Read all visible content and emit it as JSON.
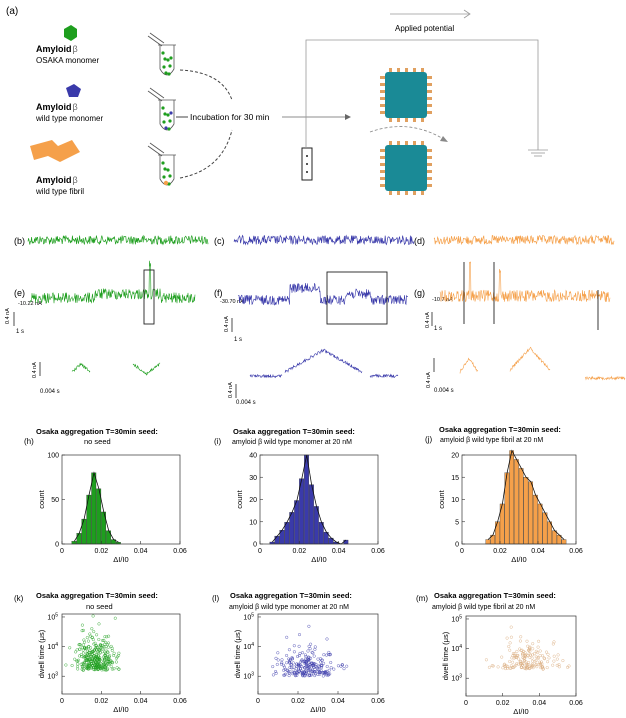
{
  "colors": {
    "green": "#1e9e1e",
    "blue": "#3a3aaa",
    "orange": "#f5a04a",
    "teal": "#1a8a96",
    "gray": "#888888",
    "black": "#111111"
  },
  "schematic": {
    "panel_label": "(a)",
    "species": [
      {
        "name": "Amyloid",
        "beta": "β",
        "sub": "OSAKA monomer"
      },
      {
        "name": "Amyloid",
        "beta": "β",
        "sub": "wild type monomer"
      },
      {
        "name": "Amyloid",
        "beta": "β",
        "sub": "wild type fibril"
      }
    ],
    "incubation_label": "Incubation for 30 min",
    "applied_potential_label": "Applied potential"
  },
  "baselines": [
    {
      "label": "(b)",
      "color": "#1e9e1e"
    },
    {
      "label": "(c)",
      "color": "#3a3aaa"
    },
    {
      "label": "(d)",
      "color": "#f5a04a"
    }
  ],
  "traces": [
    {
      "label": "(e)",
      "color": "#1e9e1e",
      "level": "-10.22 nA",
      "yscale": "0.4 nA",
      "xscale": "1 s",
      "zoom_yscale": "0.4 nA",
      "zoom_xscale": "0.004 s"
    },
    {
      "label": "(f)",
      "color": "#3a3aaa",
      "level": "-30.70 nA",
      "yscale": "0.4 nA",
      "xscale": "1 s",
      "zoom_yscale": "0.4 nA",
      "zoom_xscale": "0.004 s"
    },
    {
      "label": "(g)",
      "color": "#f5a04a",
      "level": "-10.7 nA",
      "yscale": "0.4 nA",
      "xscale": "1 s",
      "zoom_yscale": "0.4 nA",
      "zoom_xscale": "0.004 s"
    }
  ],
  "histograms_meta": [
    {
      "label": "(h)",
      "title": "Osaka aggregation T=30min seed:",
      "subtitle": "no seed"
    },
    {
      "label": "(i)",
      "title": "Osaka aggregation T=30min seed:",
      "subtitle": "amyloid β wild type monomer at 20 nM"
    },
    {
      "label": "(j)",
      "title": "Osaka aggregation T=30min seed:",
      "subtitle": "amyloid β wild type fibril at 20 nM"
    }
  ],
  "scatter_meta": [
    {
      "label": "(k)",
      "title": "Osaka aggregation T=30min seed:",
      "subtitle": "no seed"
    },
    {
      "label": "(l)",
      "title": "Osaka aggregation T=30min seed:",
      "subtitle": "amyloid β wild type monomer at 20 nM"
    },
    {
      "label": "(m)",
      "title": "Osaka aggregation T=30min seed:",
      "subtitle": "amyloid β wild type fibril at 20 nM"
    }
  ],
  "chart_data": [
    {
      "type": "bar",
      "panel": "h",
      "color": "#1e9e1e",
      "xlabel": "ΔI/I0",
      "ylabel": "count",
      "xlim": [
        0,
        0.06
      ],
      "ylim": [
        0,
        100
      ],
      "xticks": [
        "0",
        "0.02",
        "0.04",
        "0.06"
      ],
      "yticks": [
        "0",
        "50",
        "100"
      ],
      "bin_width": 0.0025,
      "bin_starts": [
        0.005,
        0.0075,
        0.01,
        0.0125,
        0.015,
        0.0175,
        0.02,
        0.0225,
        0.025,
        0.0275
      ],
      "values": [
        3,
        12,
        28,
        55,
        80,
        62,
        36,
        15,
        5,
        2
      ],
      "fit": true
    },
    {
      "type": "bar",
      "panel": "i",
      "color": "#3a3aaa",
      "xlabel": "ΔI/I0",
      "ylabel": "count",
      "xlim": [
        0,
        0.06
      ],
      "ylim": [
        0,
        45
      ],
      "xticks": [
        "0",
        "0.02",
        "0.04",
        "0.06"
      ],
      "yticks": [
        "0",
        "10",
        "20",
        "30",
        "40"
      ],
      "bin_width": 0.0025,
      "bin_starts": [
        0.005,
        0.0075,
        0.01,
        0.0125,
        0.015,
        0.0175,
        0.02,
        0.0225,
        0.025,
        0.0275,
        0.03,
        0.0325,
        0.035,
        0.0375,
        0.04,
        0.0425
      ],
      "values": [
        1,
        4,
        7,
        11,
        16,
        22,
        33,
        45,
        30,
        19,
        11,
        6,
        3,
        1,
        0,
        2
      ],
      "fit": true
    },
    {
      "type": "bar",
      "panel": "j",
      "color": "#f5a04a",
      "xlabel": "ΔI/I0",
      "ylabel": "count",
      "xlim": [
        0,
        0.06
      ],
      "ylim": [
        0,
        20
      ],
      "xticks": [
        "0",
        "0.02",
        "0.04",
        "0.06"
      ],
      "yticks": [
        "0",
        "5",
        "10",
        "15",
        "20"
      ],
      "bin_width": 0.0025,
      "bin_starts": [
        0.0125,
        0.015,
        0.0175,
        0.02,
        0.0225,
        0.025,
        0.0275,
        0.03,
        0.0325,
        0.035,
        0.0375,
        0.04,
        0.0425,
        0.045,
        0.0475,
        0.05,
        0.0525
      ],
      "values": [
        1,
        2,
        5,
        9,
        16,
        21,
        19,
        17,
        15,
        14,
        11,
        9,
        7,
        5,
        3,
        2,
        1
      ],
      "fit": true
    },
    {
      "type": "scatter",
      "panel": "k",
      "color": "#1e9e1e",
      "xlabel": "ΔI/I0",
      "ylabel": "dwell time (μs)",
      "xlim": [
        0,
        0.06
      ],
      "xticks": [
        "0",
        "0.02",
        "0.04",
        "0.06"
      ],
      "yticks": [
        "10^3",
        "10^4",
        "10^5"
      ],
      "log_y": true,
      "cluster": {
        "x_mean": 0.017,
        "x_sd": 0.005,
        "logy_mean": 3.2,
        "logy_sd": 0.45,
        "n": 320
      }
    },
    {
      "type": "scatter",
      "panel": "l",
      "color": "#3a3aaa",
      "xlabel": "ΔI/I0",
      "ylabel": "dwell time (μs)",
      "xlim": [
        0,
        0.06
      ],
      "xticks": [
        "0",
        "0.02",
        "0.04",
        "0.06"
      ],
      "yticks": [
        "10^3",
        "10^4",
        "10^5"
      ],
      "log_y": true,
      "cluster": {
        "x_mean": 0.024,
        "x_sd": 0.007,
        "logy_mean": 3.0,
        "logy_sd": 0.35,
        "n": 230
      }
    },
    {
      "type": "scatter",
      "panel": "m",
      "color": "#d8a878",
      "xlabel": "ΔI/I0",
      "ylabel": "dwell time (μs)",
      "xlim": [
        0,
        0.06
      ],
      "xticks": [
        "0",
        "0.02",
        "0.04",
        "0.06"
      ],
      "yticks": [
        "10^3",
        "10^4",
        "10^5"
      ],
      "log_y": true,
      "cluster": {
        "x_mean": 0.033,
        "x_sd": 0.009,
        "logy_mean": 3.3,
        "logy_sd": 0.35,
        "n": 160
      }
    }
  ]
}
